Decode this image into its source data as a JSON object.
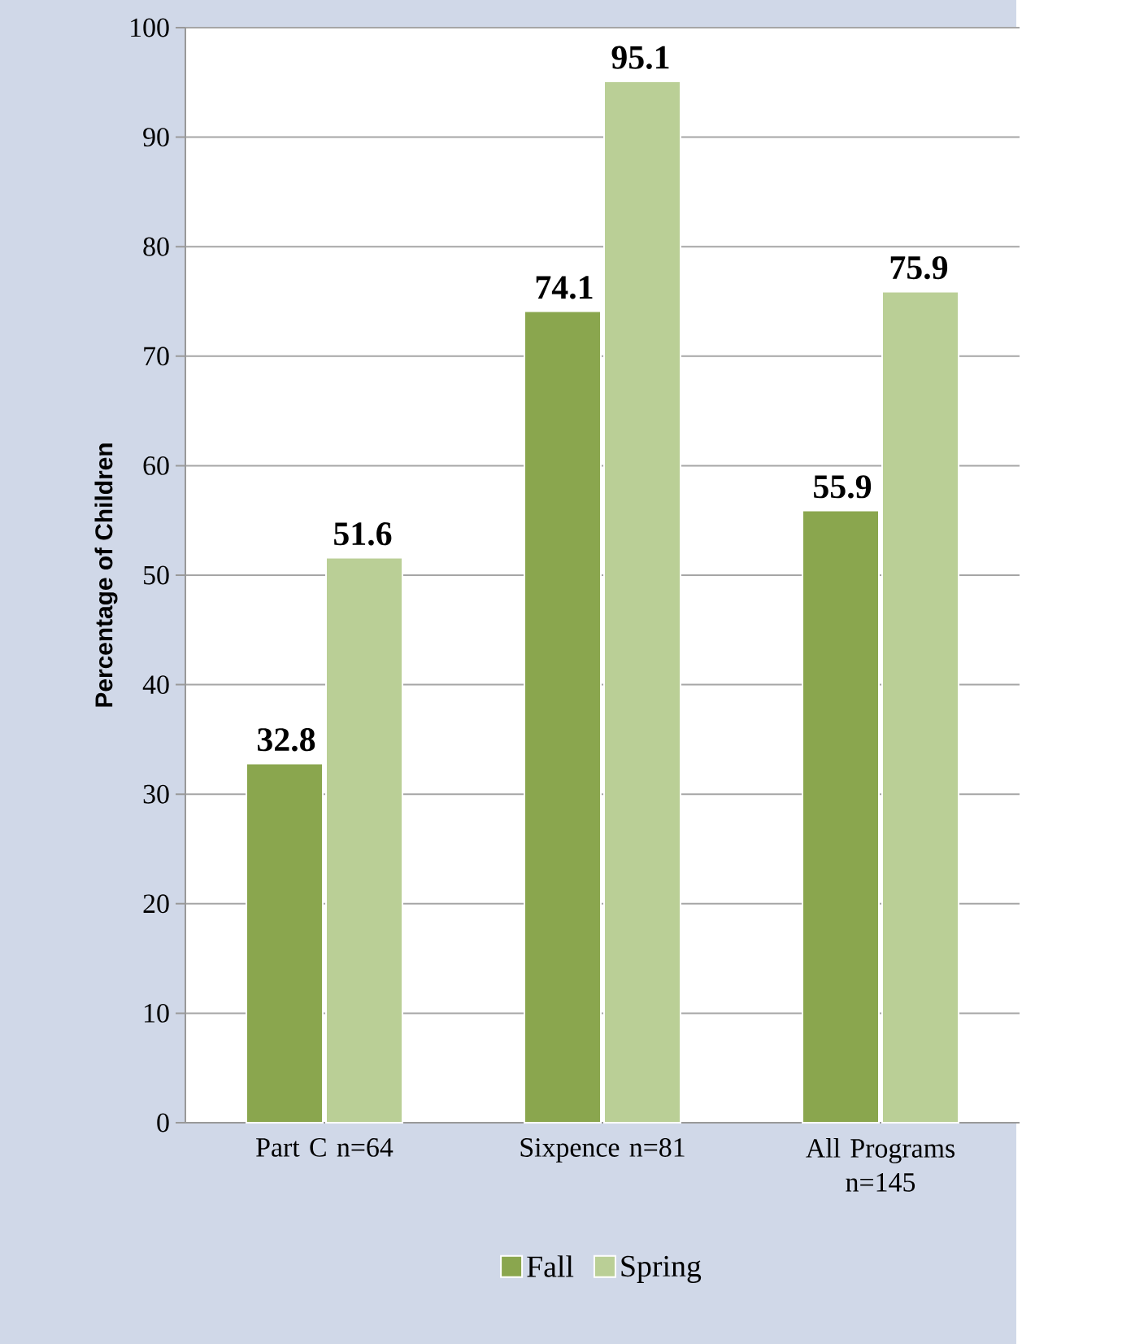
{
  "chart_data": {
    "type": "bar",
    "ylabel": "Percentage of Children",
    "categories": [
      "Part C  n=64",
      "Sixpence n=81",
      "All Programs n=145"
    ],
    "series": [
      {
        "name": "Fall",
        "color": "#8aa64e",
        "values": [
          32.8,
          74.1,
          55.9
        ]
      },
      {
        "name": "Spring",
        "color": "#bacf96",
        "values": [
          51.6,
          95.1,
          75.9
        ]
      }
    ],
    "ylim": [
      0,
      100
    ],
    "yticks": [
      0,
      10,
      20,
      30,
      40,
      50,
      60,
      70,
      80,
      90,
      100
    ],
    "grid": "y",
    "legend": "bottom",
    "data_labels": true
  }
}
